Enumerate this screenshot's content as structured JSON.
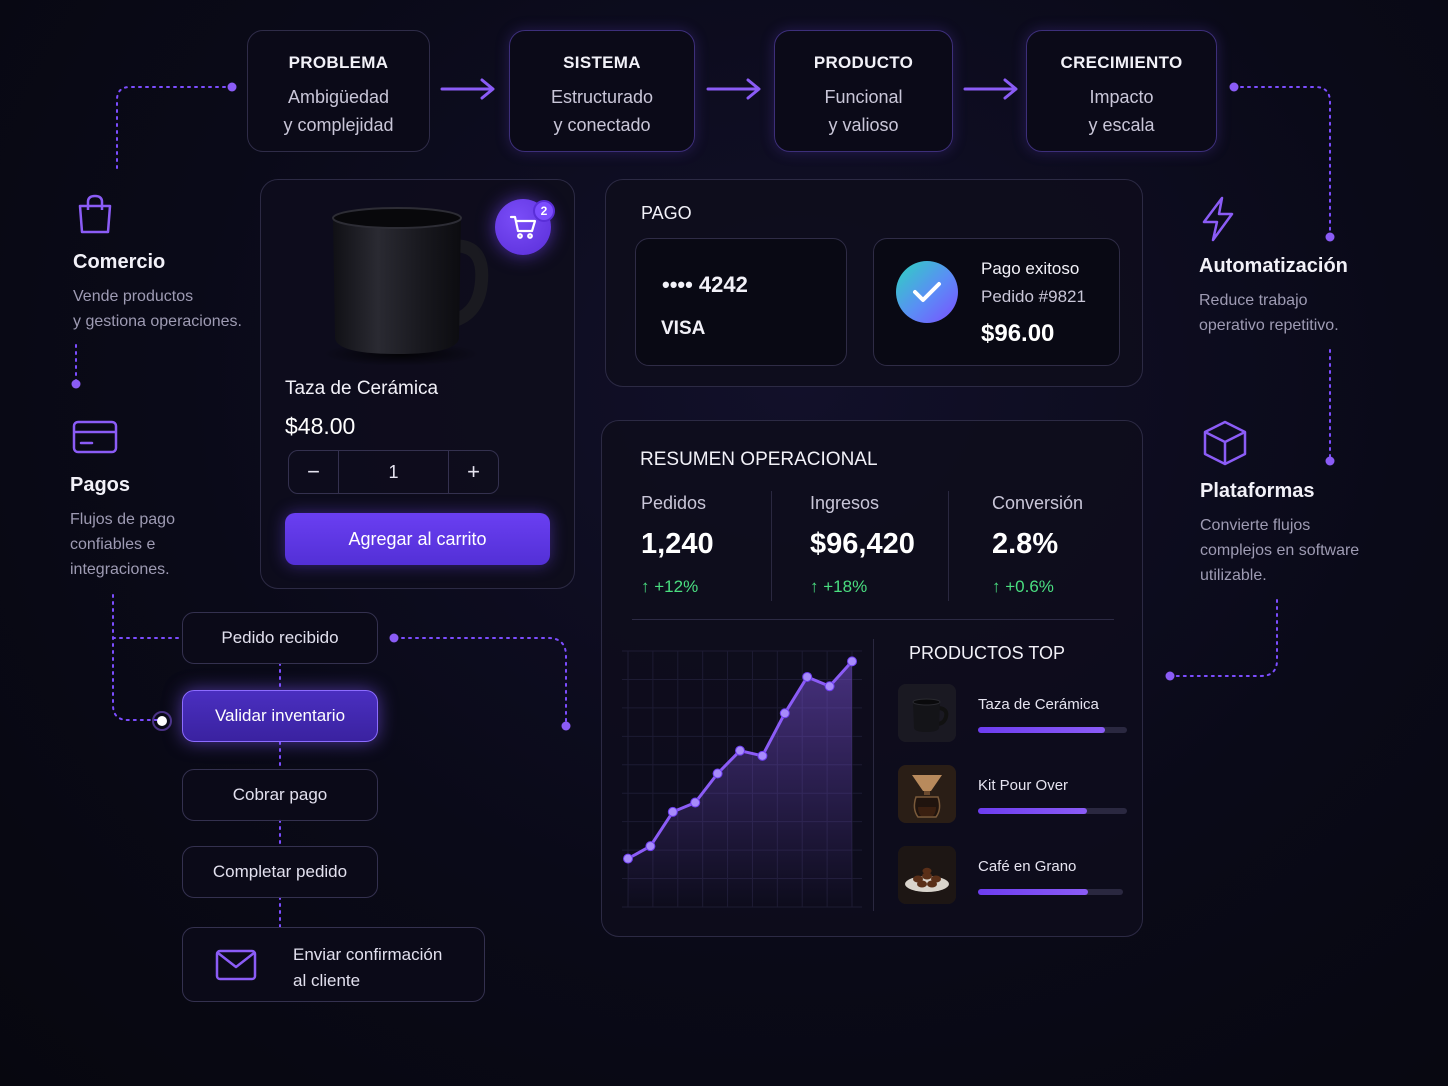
{
  "flow": [
    {
      "title": "PROBLEMA",
      "line1": "Ambigüedad",
      "line2": "y complejidad"
    },
    {
      "title": "SISTEMA",
      "line1": "Estructurado",
      "line2": "y conectado"
    },
    {
      "title": "PRODUCTO",
      "line1": "Funcional",
      "line2": "y valioso"
    },
    {
      "title": "CRECIMIENTO",
      "line1": "Impacto",
      "line2": "y escala"
    }
  ],
  "features_left": [
    {
      "icon": "shopping-bag-icon",
      "title": "Comercio",
      "desc1": "Vende productos",
      "desc2": "y gestiona operaciones."
    },
    {
      "icon": "credit-card-icon",
      "title": "Pagos",
      "desc1": "Flujos de pago",
      "desc2": "confiables e",
      "desc3": "integraciones."
    }
  ],
  "features_right": [
    {
      "icon": "lightning-icon",
      "title": "Automatización",
      "desc1": "Reduce trabajo",
      "desc2": "operativo repetitivo."
    },
    {
      "icon": "cube-icon",
      "title": "Plataformas",
      "desc1": "Convierte flujos",
      "desc2": "complejos en software",
      "desc3": "utilizable."
    }
  ],
  "product": {
    "name": "Taza de Cerámica",
    "price": "$48.00",
    "quantity": "1",
    "minus": "−",
    "plus": "+",
    "add_button": "Agregar al carrito",
    "cart_count": "2"
  },
  "workflow": {
    "steps": [
      "Pedido recibido",
      "Validar inventario",
      "Cobrar pago",
      "Completar pedido"
    ],
    "final_line1": "Enviar confirmación",
    "final_line2": "al cliente"
  },
  "payment": {
    "title": "PAGO",
    "card_number": "•••• 4242",
    "card_brand": "VISA",
    "status": "Pago exitoso",
    "order": "Pedido #9821",
    "amount": "$96.00"
  },
  "summary": {
    "title": "RESUMEN OPERACIONAL",
    "metrics": [
      {
        "label": "Pedidos",
        "value": "1,240",
        "delta": "+12%"
      },
      {
        "label": "Ingresos",
        "value": "$96,420",
        "delta": "+18%"
      },
      {
        "label": "Conversión",
        "value": "2.8%",
        "delta": "+0.6%"
      }
    ],
    "top_title": "PRODUCTOS TOP",
    "top_products": [
      {
        "name": "Taza de Cerámica",
        "share": 0.85
      },
      {
        "name": "Kit Pour Over",
        "share": 0.73
      },
      {
        "name": "Café en Grano",
        "share": 0.76
      }
    ]
  },
  "chart_data": {
    "type": "line",
    "x": [
      1,
      2,
      3,
      4,
      5,
      6,
      7,
      8,
      9,
      10,
      11
    ],
    "values": [
      10,
      22,
      55,
      64,
      92,
      114,
      109,
      150,
      185,
      176,
      200
    ],
    "ylim": [
      0,
      210
    ],
    "grid": true,
    "color": "#8b5cf6"
  },
  "colors": {
    "accent": "#8b5cf6",
    "success": "#4ade80"
  }
}
